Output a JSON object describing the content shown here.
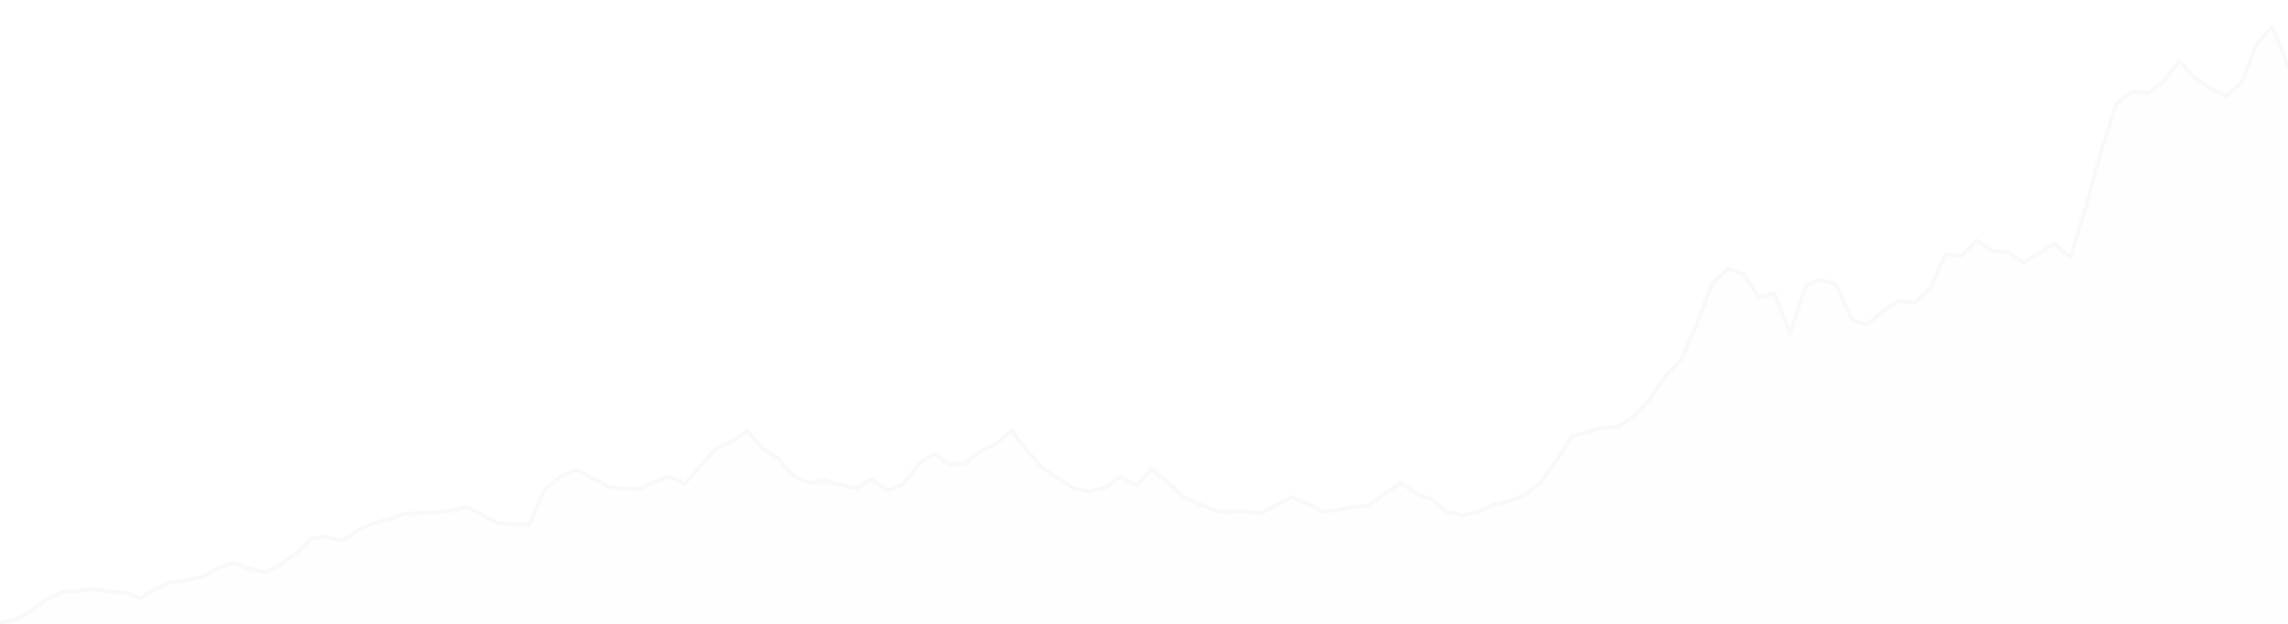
{
  "chart_data": {
    "type": "area",
    "series": [
      {
        "values": [
          0.1,
          0.6,
          1.7,
          3.2,
          4.1,
          4.3,
          4.5,
          4.2,
          4.1,
          3.3,
          4.6,
          5.4,
          5.7,
          6.1,
          7.3,
          7.9,
          7.2,
          6.7,
          7.7,
          9.1,
          11.1,
          11.3,
          10.8,
          12.2,
          13.1,
          13.6,
          14.3,
          14.4,
          14.5,
          14.7,
          15.2,
          14.1,
          13.1,
          12.9,
          12.9,
          17.5,
          19.1,
          20.0,
          19.0,
          17.9,
          17.6,
          17.5,
          18.4,
          19.1,
          18.2,
          20.5,
          22.8,
          23.7,
          25.1,
          22.8,
          21.5,
          19.2,
          18.3,
          18.6,
          18.1,
          17.6,
          18.8,
          17.3,
          18.1,
          20.7,
          22.1,
          20.7,
          20.9,
          22.4,
          23.4,
          25.1,
          22.5,
          20.2,
          18.9,
          17.6,
          17.2,
          17.7,
          19.1,
          18.0,
          20.1,
          18.4,
          16.6,
          15.6,
          14.8,
          14.5,
          14.7,
          14.3,
          15.4,
          16.5,
          15.6,
          14.6,
          14.8,
          15.2,
          15.4,
          17.0,
          18.3,
          16.9,
          16.2,
          14.5,
          14.1,
          14.6,
          15.5,
          16.0,
          16.8,
          18.4,
          21.2,
          24.4,
          24.9,
          25.5,
          25.6,
          27.0,
          29.2,
          32.2,
          34.3,
          38.8,
          44.2,
          46.1,
          45.5,
          42.4,
          42.9,
          37.7,
          43.9,
          44.7,
          44.0,
          39.4,
          38.9,
          40.7,
          41.9,
          41.7,
          43.5,
          48.0,
          47.8,
          49.8,
          48.4,
          48.3,
          46.9,
          48.1,
          49.4,
          47.6,
          54.0,
          61.4,
          67.6,
          69.1,
          68.9,
          70.4,
          73.1,
          70.9,
          69.6,
          68.5,
          70.2,
          75.3,
          77.5,
          72.5
        ]
      }
    ],
    "fill_color": "#fefefe",
    "stroke_color": "#f9f9f9",
    "background_color": "#ffffff",
    "ylim": [
      0,
      81
    ],
    "grid": false,
    "legend": "none"
  }
}
